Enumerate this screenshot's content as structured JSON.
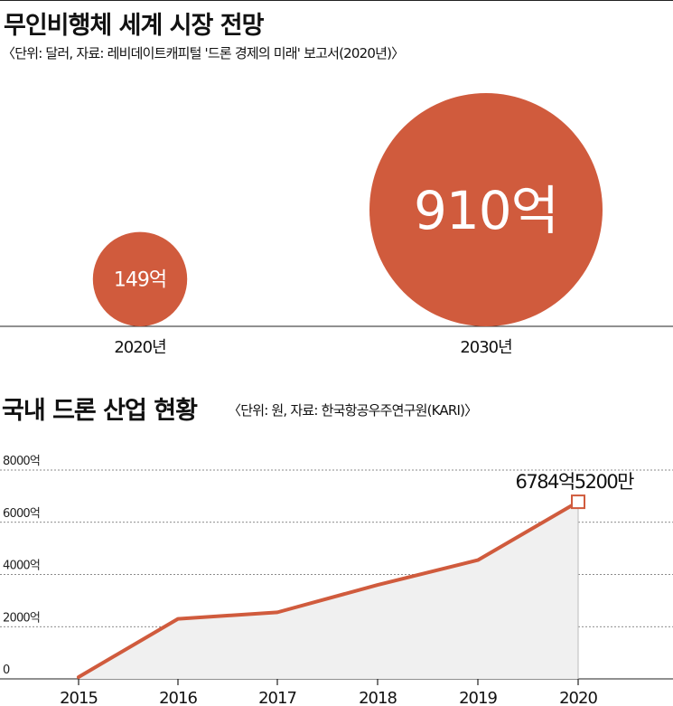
{
  "chart_data": [
    {
      "type": "bubble",
      "title": "무인비행체 세계 시장 전망",
      "subtitle": "〈단위: 달러, 자료: 레비데이트캐피털 '드론 경제의 미래' 보고서(2020년)〉",
      "categories": [
        "2020년",
        "2030년"
      ],
      "values": [
        149,
        910
      ],
      "value_labels": [
        "149억",
        "910억"
      ]
    },
    {
      "type": "area",
      "title": "국내 드론 산업 현황",
      "subtitle": "〈단위: 원, 자료: 한국항공우주연구원(KARI)〉",
      "x": [
        "2015",
        "2016",
        "2017",
        "2018",
        "2019",
        "2020"
      ],
      "values": [
        70,
        2300,
        2550,
        3600,
        4550,
        6784.52
      ],
      "ylim": [
        0,
        8000
      ],
      "y_ticks": [
        0,
        2000,
        4000,
        6000,
        8000
      ],
      "y_tick_labels": [
        "0",
        "2000억",
        "4000억",
        "6000억",
        "8000억"
      ],
      "grid": true,
      "annotation": "6784억5200만"
    }
  ],
  "colors": {
    "accent": "#d05b3d",
    "area_fill": "#f0f0f0",
    "grid": "#666666"
  }
}
